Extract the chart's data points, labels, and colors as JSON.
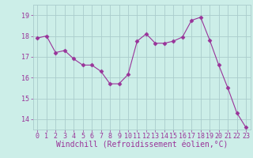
{
  "x": [
    0,
    1,
    2,
    3,
    4,
    5,
    6,
    7,
    8,
    9,
    10,
    11,
    12,
    13,
    14,
    15,
    16,
    17,
    18,
    19,
    20,
    21,
    22,
    23
  ],
  "y": [
    17.9,
    18.0,
    17.2,
    17.3,
    16.9,
    16.6,
    16.6,
    16.3,
    15.7,
    15.7,
    16.15,
    17.75,
    18.1,
    17.65,
    17.65,
    17.75,
    17.95,
    18.75,
    18.9,
    17.8,
    16.6,
    15.5,
    14.3,
    13.6
  ],
  "line_color": "#993399",
  "marker": "D",
  "marker_size": 2.5,
  "background_color": "#cceee8",
  "grid_color": "#aacccc",
  "xlabel": "Windchill (Refroidissement éolien,°C)",
  "ylim": [
    13.5,
    19.5
  ],
  "yticks": [
    14,
    15,
    16,
    17,
    18,
    19
  ],
  "xticks": [
    0,
    1,
    2,
    3,
    4,
    5,
    6,
    7,
    8,
    9,
    10,
    11,
    12,
    13,
    14,
    15,
    16,
    17,
    18,
    19,
    20,
    21,
    22,
    23
  ],
  "axis_fontsize": 6,
  "tick_fontsize": 6,
  "xlabel_fontsize": 7
}
